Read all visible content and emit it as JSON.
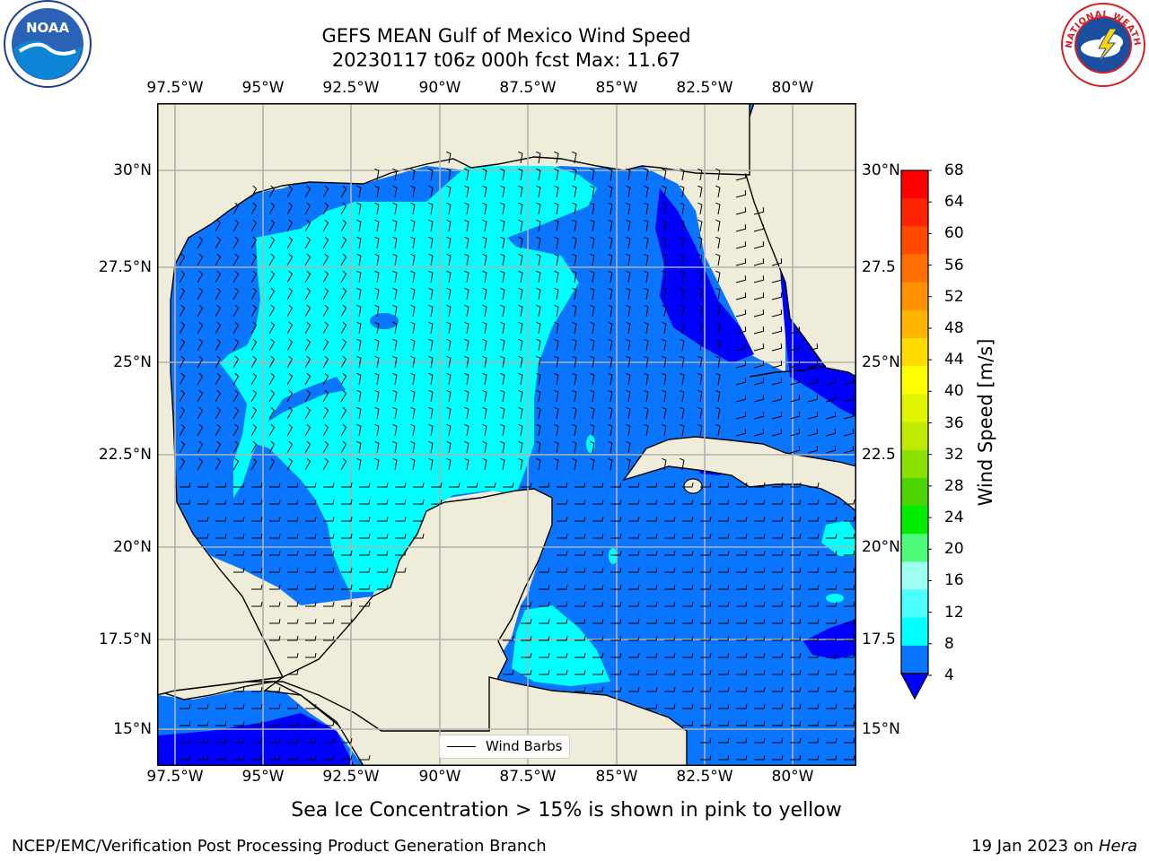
{
  "header": {
    "title_line1": "GEFS MEAN Gulf of Mexico Wind Speed",
    "title_line2": "20230117 t06z 000h fcst   Max: 11.67"
  },
  "logos": {
    "left": {
      "name": "noaa-logo",
      "text": "NOAA"
    },
    "right": {
      "name": "nws-logo",
      "text": "NATIONAL WEATHER SERVICE"
    }
  },
  "map": {
    "longitude_labels": [
      "97.5°W",
      "95°W",
      "92.5°W",
      "90°W",
      "87.5°W",
      "85°W",
      "82.5°W",
      "80°W"
    ],
    "latitude_labels_left": [
      "30°N",
      "27.5°N",
      "25°N",
      "22.5°N",
      "20°N",
      "17.5°N",
      "15°N"
    ],
    "latitude_labels_right": [
      "30°N",
      "27.5",
      "25°N",
      "22.5",
      "20°N",
      "17.5",
      "15°N"
    ],
    "land_color": "#efedd9",
    "legend_label": "Wind Barbs"
  },
  "colorbar": {
    "label": "Wind Speed [m/s]",
    "ticks": [
      "68",
      "64",
      "60",
      "56",
      "52",
      "48",
      "44",
      "40",
      "36",
      "32",
      "28",
      "24",
      "20",
      "16",
      "12",
      "8",
      "4"
    ],
    "colors": [
      "#ff0000",
      "#ff2400",
      "#ff4a00",
      "#ff6e00",
      "#ff9100",
      "#ffb500",
      "#ffdb00",
      "#ffff00",
      "#e2f500",
      "#c0ea00",
      "#8ae000",
      "#4ed400",
      "#00ee00",
      "#4dfa7a",
      "#9dfff0",
      "#4cffff",
      "#00ffff",
      "#0a76ff"
    ],
    "under_color": "#0000ff"
  },
  "footer": {
    "note": "Sea Ice Concentration > 15% is shown in pink to yellow",
    "credit": "NCEP/EMC/Verification Post Processing Product Generation Branch",
    "date": "19 Jan 2023 on ",
    "host": "Hera"
  }
}
